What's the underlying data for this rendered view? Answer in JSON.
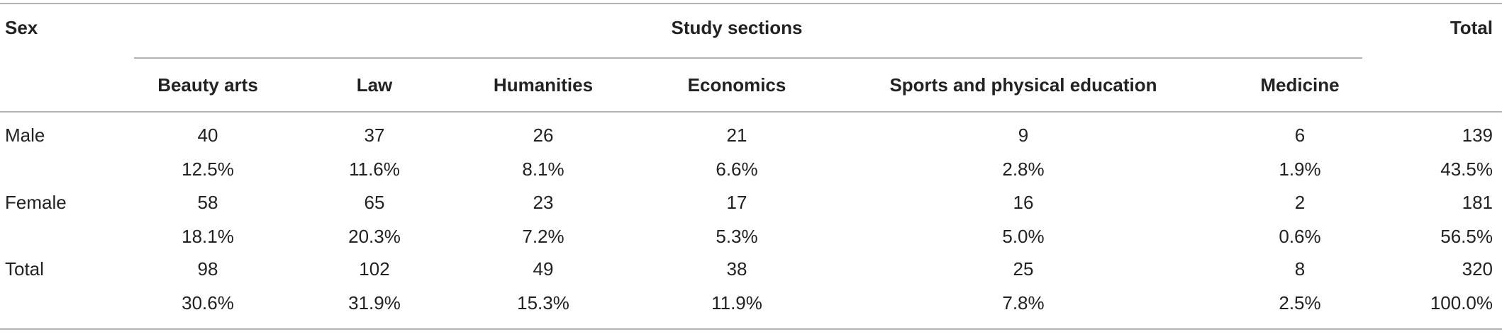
{
  "header": {
    "sex": "Sex",
    "group": "Study sections",
    "total": "Total"
  },
  "columns": [
    "Beauty arts",
    "Law",
    "Humanities",
    "Economics",
    "Sports and physical education",
    "Medicine"
  ],
  "rows": [
    {
      "label": "Male",
      "counts": [
        "40",
        "37",
        "26",
        "21",
        "9",
        "6",
        "139"
      ],
      "percents": [
        "12.5%",
        "11.6%",
        "8.1%",
        "6.6%",
        "2.8%",
        "1.9%",
        "43.5%"
      ]
    },
    {
      "label": "Female",
      "counts": [
        "58",
        "65",
        "23",
        "17",
        "16",
        "2",
        "181"
      ],
      "percents": [
        "18.1%",
        "20.3%",
        "7.2%",
        "5.3%",
        "5.0%",
        "0.6%",
        "56.5%"
      ]
    },
    {
      "label": "Total",
      "counts": [
        "98",
        "102",
        "49",
        "38",
        "25",
        "8",
        "320"
      ],
      "percents": [
        "30.6%",
        "31.9%",
        "15.3%",
        "11.9%",
        "7.8%",
        "2.5%",
        "100.0%"
      ]
    }
  ]
}
